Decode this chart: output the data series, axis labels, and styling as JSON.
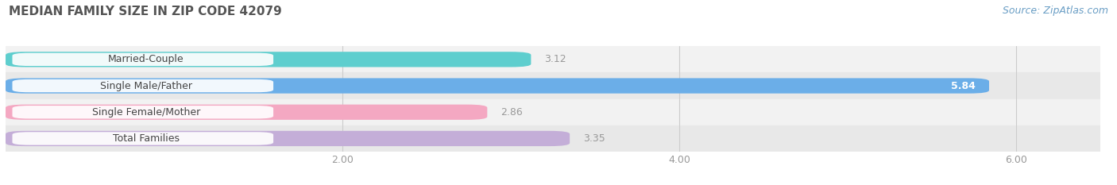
{
  "title": "MEDIAN FAMILY SIZE IN ZIP CODE 42079",
  "source": "Source: ZipAtlas.com",
  "categories": [
    "Married-Couple",
    "Single Male/Father",
    "Single Female/Mother",
    "Total Families"
  ],
  "values": [
    3.12,
    5.84,
    2.86,
    3.35
  ],
  "bar_colors": [
    "#5ecece",
    "#6baee8",
    "#f4a8c2",
    "#c4aed8"
  ],
  "xlim": [
    0,
    6.5
  ],
  "xticks": [
    2.0,
    4.0,
    6.0
  ],
  "xtick_labels": [
    "2.00",
    "4.00",
    "6.00"
  ],
  "value_label_color_inside": "#ffffff",
  "value_label_color_outside": "#999999",
  "title_fontsize": 11,
  "label_fontsize": 9,
  "tick_fontsize": 9,
  "source_fontsize": 9,
  "bar_height": 0.58,
  "background_color": "#ffffff",
  "row_colors": [
    "#f2f2f2",
    "#e8e8e8",
    "#f2f2f2",
    "#e8e8e8"
  ]
}
